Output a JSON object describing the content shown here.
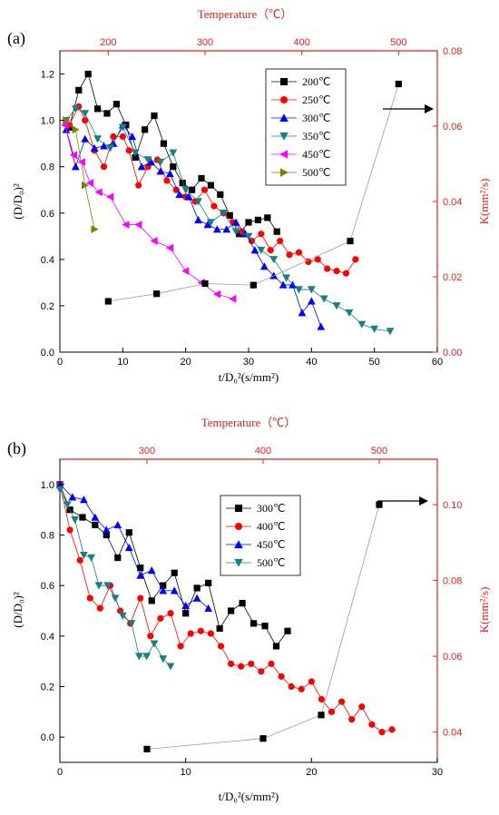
{
  "chart_data": [
    {
      "panel": "(a)",
      "type": "scatter",
      "xlabel": "t/D₀²(s/mm²)",
      "ylabel": "(D/D₀)²",
      "y2label": "K(mm²/s)",
      "top_xlabel": "Temperature（℃）",
      "xlim": [
        0,
        60
      ],
      "ylim": [
        0,
        1.3
      ],
      "y2lim": [
        0,
        0.08
      ],
      "top_xlim": [
        150,
        540
      ],
      "xticks": [
        "0",
        "10",
        "20",
        "30",
        "40",
        "50",
        "60"
      ],
      "yticks": [
        "0.0",
        "0.2",
        "0.4",
        "0.6",
        "0.8",
        "1.0",
        "1.2"
      ],
      "y2ticks": [
        "0.00",
        "0.02",
        "0.04",
        "0.06",
        "0.08"
      ],
      "top_xticks": [
        "200",
        "300",
        "400",
        "500"
      ],
      "series": [
        {
          "name": "200℃",
          "color": "#000000",
          "marker": "square",
          "x": [
            1.5,
            3,
            4.5,
            6,
            7.5,
            9,
            10.5,
            12,
            13.5,
            15,
            16.5,
            18,
            19.5,
            21,
            22.5,
            24,
            25.5,
            27,
            28.5,
            30,
            31.5,
            33,
            34.5
          ],
          "y": [
            0.97,
            1.13,
            1.2,
            1.05,
            1.03,
            1.07,
            0.98,
            0.84,
            0.96,
            1.02,
            0.9,
            0.8,
            0.73,
            0.7,
            0.75,
            0.72,
            0.68,
            0.59,
            0.51,
            0.56,
            0.57,
            0.58,
            0.52
          ]
        },
        {
          "name": "250℃",
          "color": "#ff0000",
          "marker": "circle",
          "x": [
            1.5,
            3,
            4,
            5.5,
            7,
            8.5,
            10,
            11,
            12.5,
            14,
            15.5,
            17,
            18.5,
            20,
            21.5,
            23,
            24.5,
            26,
            27.5,
            29,
            30.5,
            32,
            33.5,
            35,
            36.5,
            38,
            39.5,
            41,
            42.5,
            44,
            45.5,
            47
          ],
          "y": [
            0.98,
            1.06,
            1.0,
            0.87,
            0.8,
            0.93,
            0.93,
            0.87,
            0.72,
            0.8,
            0.83,
            0.74,
            0.7,
            0.67,
            0.65,
            0.7,
            0.63,
            0.6,
            0.56,
            0.52,
            0.48,
            0.51,
            0.44,
            0.48,
            0.42,
            0.43,
            0.39,
            0.4,
            0.36,
            0.35,
            0.34,
            0.4
          ]
        },
        {
          "name": "300℃",
          "color": "#0000ff",
          "marker": "triangle-up",
          "x": [
            1,
            2.5,
            4,
            5.5,
            7,
            8.5,
            10,
            11.5,
            13,
            14.5,
            16,
            17.5,
            19,
            20.5,
            22,
            23.5,
            25,
            26.5,
            28,
            29.5,
            31,
            32.5,
            34,
            35.5,
            37,
            38.5,
            40,
            41.5
          ],
          "y": [
            0.96,
            0.8,
            0.92,
            0.88,
            0.89,
            0.9,
            0.98,
            0.93,
            0.8,
            0.82,
            0.78,
            0.77,
            0.68,
            0.67,
            0.57,
            0.55,
            0.53,
            0.53,
            0.56,
            0.51,
            0.44,
            0.37,
            0.33,
            0.29,
            0.29,
            0.17,
            0.22,
            0.11
          ]
        },
        {
          "name": "350℃",
          "color": "#1a7f7f",
          "marker": "triangle-down",
          "x": [
            1,
            2.5,
            4,
            6,
            8,
            10,
            12,
            14,
            16,
            18,
            20,
            22,
            24,
            26,
            28,
            30,
            32,
            34,
            36,
            38,
            40,
            42,
            44,
            46,
            48,
            50,
            52.5
          ],
          "y": [
            1.0,
            1.05,
            1.03,
            0.92,
            0.88,
            0.97,
            0.86,
            0.83,
            0.82,
            0.86,
            0.7,
            0.65,
            0.56,
            0.6,
            0.52,
            0.5,
            0.44,
            0.4,
            0.32,
            0.27,
            0.27,
            0.23,
            0.2,
            0.17,
            0.12,
            0.1,
            0.09
          ]
        },
        {
          "name": "450℃",
          "color": "#ff00ff",
          "marker": "triangle-left",
          "x": [
            0.8,
            2.2,
            3.5,
            4.8,
            6.2,
            8,
            10.5,
            12.5,
            15,
            17.5,
            20,
            22.5,
            25,
            27.5
          ],
          "y": [
            0.98,
            0.85,
            0.82,
            0.73,
            0.69,
            0.67,
            0.55,
            0.55,
            0.48,
            0.45,
            0.35,
            0.3,
            0.25,
            0.23
          ]
        },
        {
          "name": "500℃",
          "color": "#808000",
          "marker": "triangle-right",
          "x": [
            1,
            2.5,
            4,
            5.5
          ],
          "y": [
            1.0,
            0.96,
            0.72,
            0.53
          ]
        },
        {
          "name": "",
          "axis": "K",
          "color": "#808080",
          "marker": "square",
          "temperature": [
            200,
            250,
            300,
            350,
            450,
            500
          ],
          "k": [
            0.0135,
            0.0155,
            0.0182,
            0.0178,
            0.0295,
            0.0712
          ]
        }
      ],
      "arrow": "right"
    },
    {
      "panel": "(b)",
      "type": "scatter",
      "xlabel": "t/D₀²(s/mm²)",
      "ylabel": "(D/D₀)²",
      "y2label": "K(mm²/s)",
      "top_xlabel": "Temperature（℃）",
      "xlim": [
        0,
        30
      ],
      "ylim": [
        -0.1,
        1.1
      ],
      "y2lim": [
        0.032,
        0.112
      ],
      "top_xlim": [
        225,
        550
      ],
      "xticks": [
        "0",
        "10",
        "20",
        "30"
      ],
      "yticks": [
        "0.0",
        "0.2",
        "0.4",
        "0.6",
        "0.8",
        "1.0"
      ],
      "y2ticks": [
        "0.04",
        "0.06",
        "0.08",
        "0.10"
      ],
      "top_xticks": [
        "300",
        "400",
        "500"
      ],
      "series": [
        {
          "name": "300℃",
          "color": "#000000",
          "marker": "square",
          "x": [
            0,
            0.8,
            1.8,
            2.8,
            3.7,
            4.6,
            5.5,
            6.4,
            7.3,
            8.2,
            9.1,
            10,
            10.9,
            11.8,
            12.7,
            13.6,
            14.5,
            15.4,
            16.3,
            17.2,
            18.1
          ],
          "y": [
            1.0,
            0.9,
            0.87,
            0.84,
            0.8,
            0.71,
            0.81,
            0.67,
            0.54,
            0.6,
            0.65,
            0.49,
            0.59,
            0.61,
            0.43,
            0.5,
            0.53,
            0.45,
            0.44,
            0.36,
            0.42
          ]
        },
        {
          "name": "400℃",
          "color": "#ff0000",
          "marker": "circle",
          "x": [
            0,
            0.8,
            1.6,
            2.4,
            3.2,
            4,
            4.8,
            5.6,
            6.4,
            7.2,
            8,
            8.8,
            9.6,
            10.4,
            11.2,
            12,
            12.8,
            13.6,
            14.4,
            15.2,
            16,
            16.8,
            17.6,
            18.4,
            19.2,
            20,
            20.8,
            21.6,
            22.4,
            23.2,
            24,
            24.8,
            25.6,
            26.4
          ],
          "y": [
            1.0,
            0.82,
            0.7,
            0.55,
            0.51,
            0.6,
            0.5,
            0.45,
            0.55,
            0.4,
            0.47,
            0.49,
            0.36,
            0.41,
            0.42,
            0.41,
            0.36,
            0.29,
            0.28,
            0.29,
            0.26,
            0.29,
            0.24,
            0.2,
            0.19,
            0.22,
            0.15,
            0.1,
            0.14,
            0.07,
            0.12,
            0.05,
            0.02,
            0.03
          ]
        },
        {
          "name": "450℃",
          "color": "#0000ff",
          "marker": "triangle-up",
          "x": [
            0,
            1,
            1.9,
            2.8,
            3.7,
            4.6,
            5.5,
            6.4,
            7.3,
            8.2,
            9.1,
            10,
            10.9,
            11.8
          ],
          "y": [
            1.0,
            0.95,
            0.94,
            0.87,
            0.82,
            0.84,
            0.75,
            0.64,
            0.66,
            0.58,
            0.58,
            0.52,
            0.55,
            0.51
          ]
        },
        {
          "name": "500℃",
          "color": "#1a7f7f",
          "marker": "triangle-down",
          "x": [
            0,
            0.6,
            1.2,
            1.9,
            2.5,
            3.1,
            3.8,
            4.4,
            5,
            5.7,
            6.3,
            6.9,
            7.5,
            8.2,
            8.8
          ],
          "y": [
            0.98,
            0.92,
            0.86,
            0.72,
            0.71,
            0.6,
            0.6,
            0.55,
            0.48,
            0.45,
            0.32,
            0.32,
            0.37,
            0.31,
            0.28
          ]
        },
        {
          "name": "",
          "axis": "K",
          "color": "#808080",
          "marker": "square",
          "temperature": [
            300,
            400,
            450,
            500
          ],
          "k": [
            0.0355,
            0.0383,
            0.0445,
            0.1
          ]
        }
      ],
      "arrow": "right"
    }
  ]
}
